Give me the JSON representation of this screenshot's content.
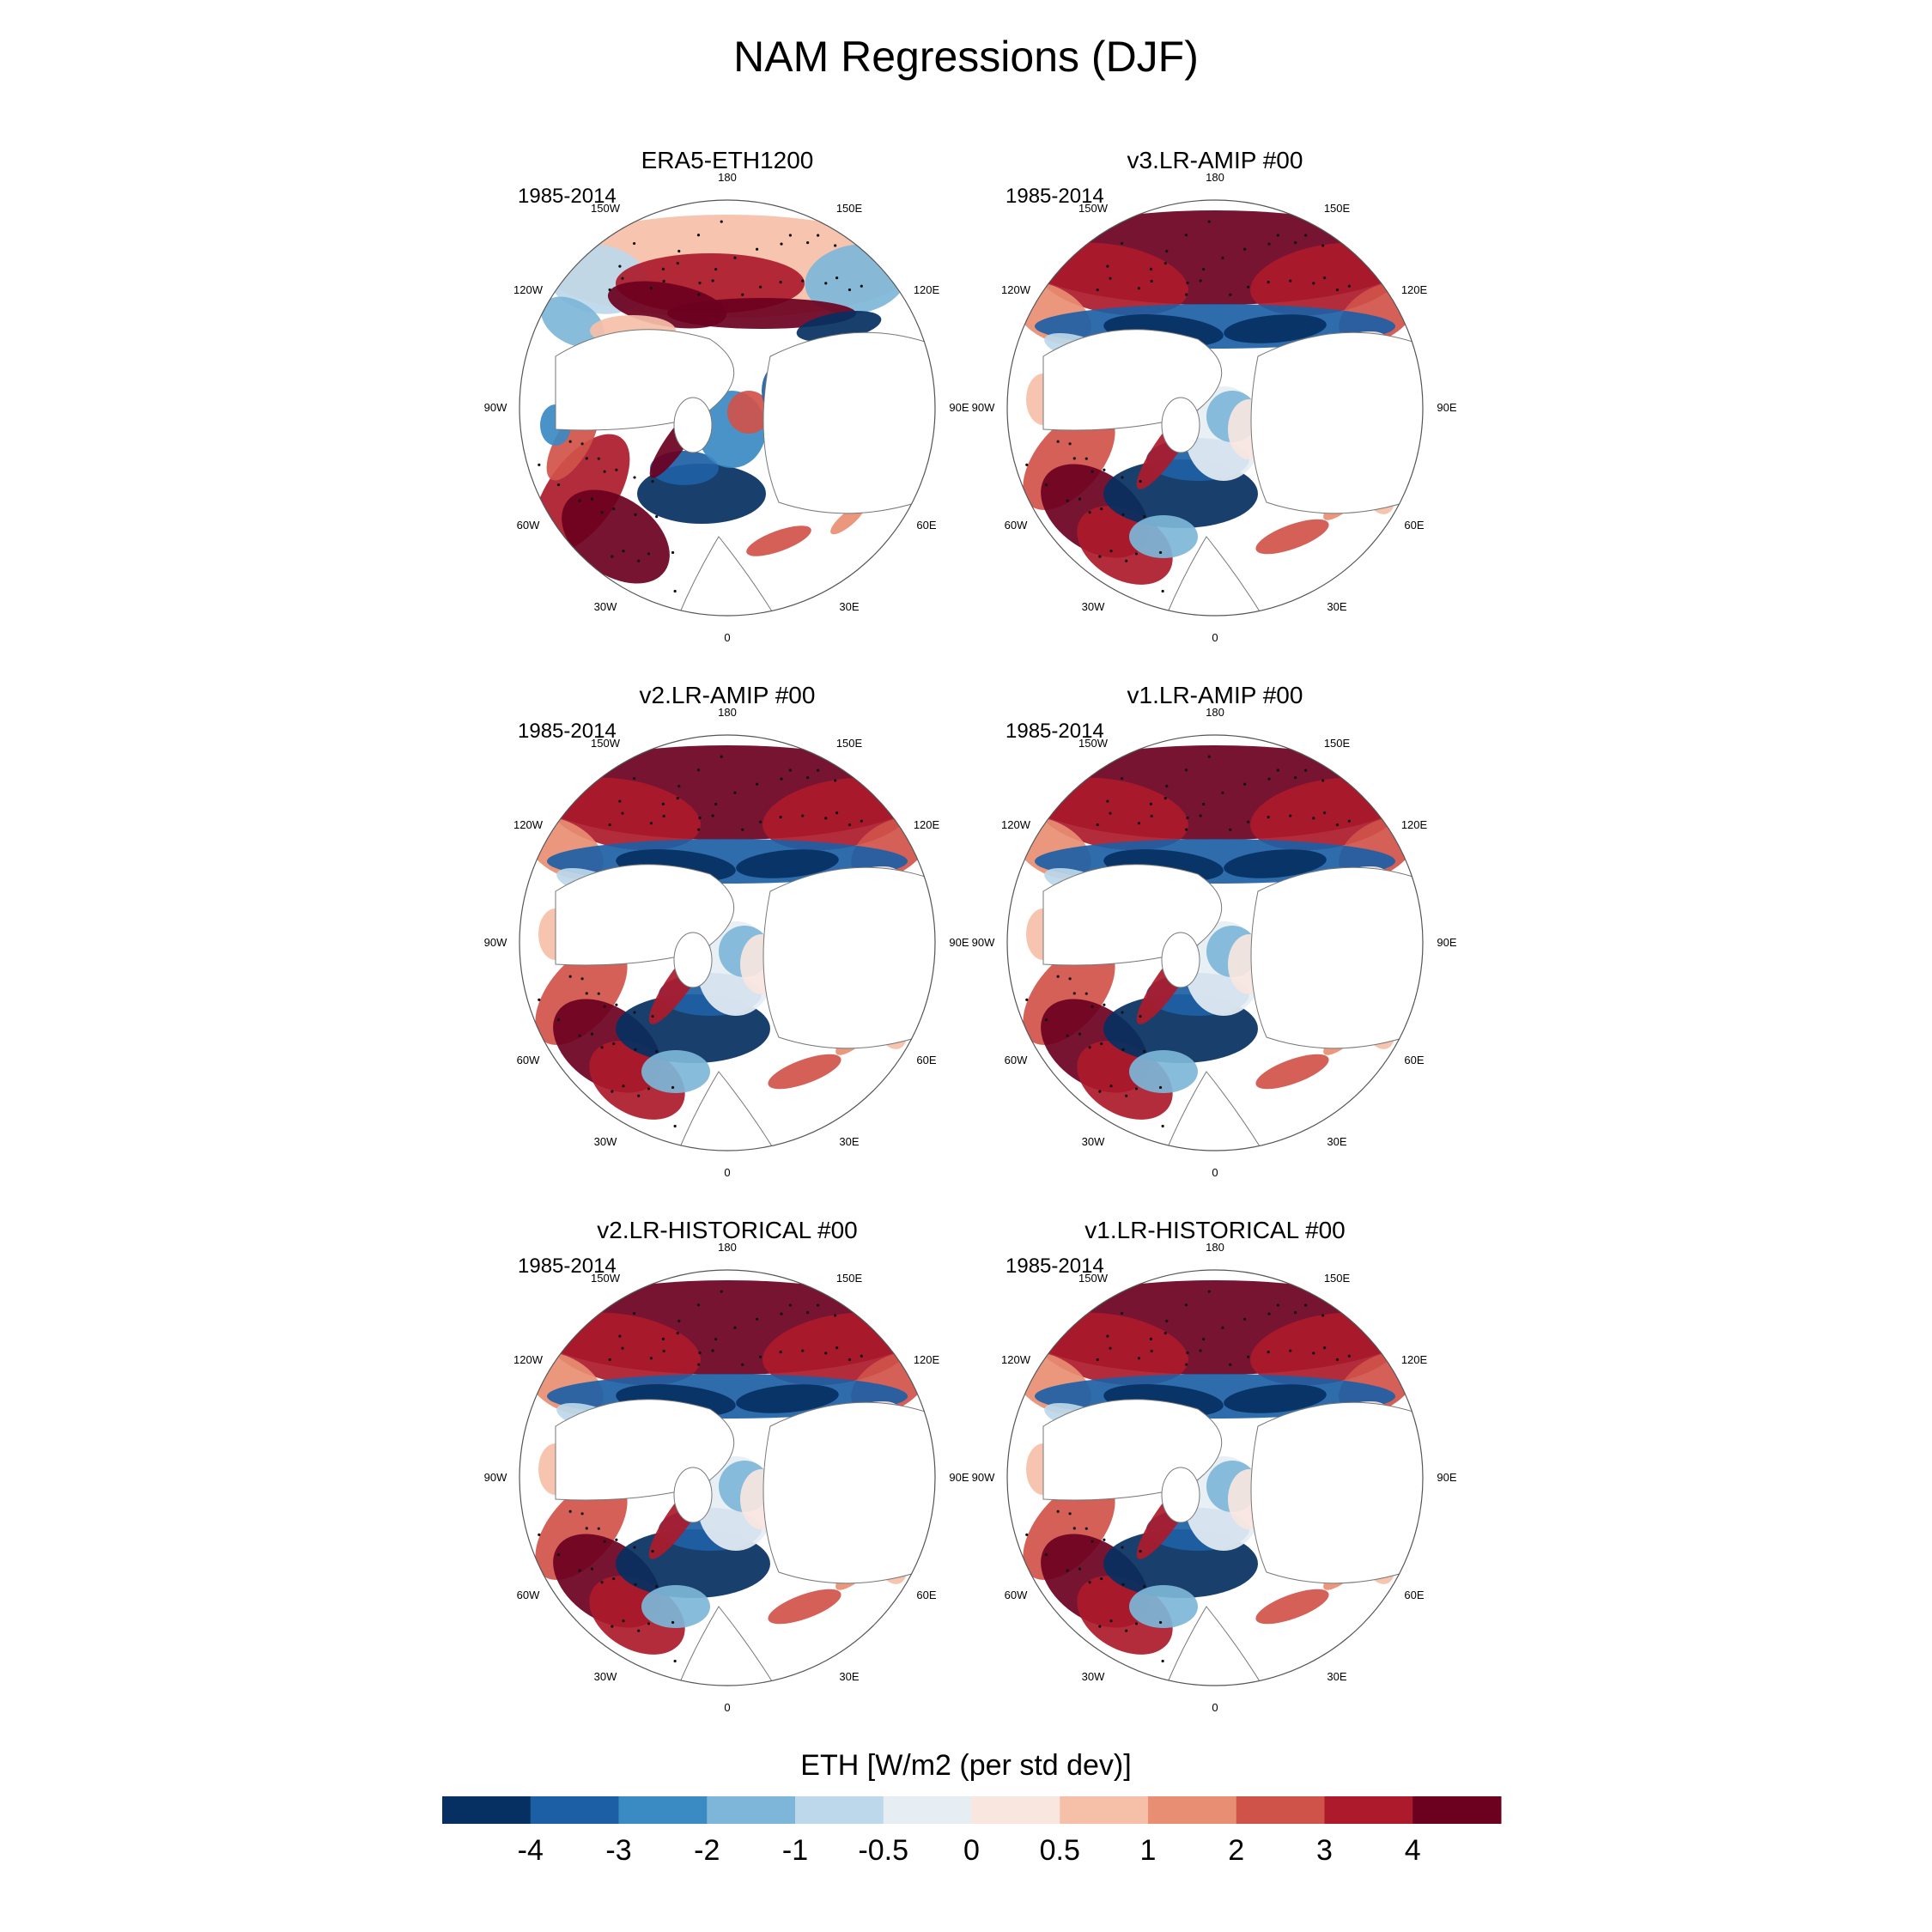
{
  "title": "NAM Regressions (DJF)",
  "lon_labels": [
    "180",
    "150E",
    "120E",
    "90E",
    "60E",
    "30E",
    "0",
    "30W",
    "60W",
    "90W",
    "120W",
    "150W"
  ],
  "panels": [
    {
      "title": "ERA5-ETH1200",
      "period": "1985-2014",
      "pattern": "era5"
    },
    {
      "title": "v3.LR-AMIP  #00",
      "period": "1985-2014",
      "pattern": "model"
    },
    {
      "title": "v2.LR-AMIP  #00",
      "period": "1985-2014",
      "pattern": "model"
    },
    {
      "title": "v1.LR-AMIP  #00",
      "period": "1985-2014",
      "pattern": "model"
    },
    {
      "title": "v2.LR-HISTORICAL  #00",
      "period": "1985-2014",
      "pattern": "model"
    },
    {
      "title": "v1.LR-HISTORICAL  #00",
      "period": "1985-2014",
      "pattern": "model"
    }
  ],
  "colorbar": {
    "title": "ETH [W/m2 (per std dev)]",
    "labels": [
      "-4",
      "-3",
      "-2",
      "-1",
      "-0.5",
      "0",
      "0.5",
      "1",
      "2",
      "3",
      "4"
    ],
    "colors": [
      "#053061",
      "#1d5fa5",
      "#3a8ac3",
      "#7db6d8",
      "#bcd8ea",
      "#e6eef4",
      "#f9e6df",
      "#f6c0a8",
      "#e88e72",
      "#d0534a",
      "#ac1a2b",
      "#6b001f"
    ]
  }
}
